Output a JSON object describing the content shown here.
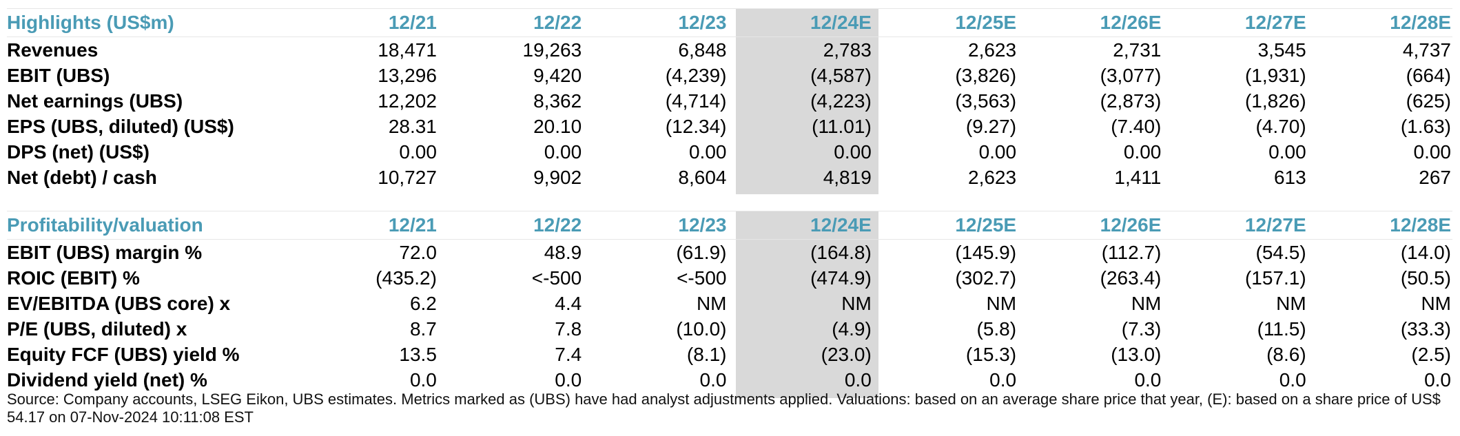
{
  "highlights": {
    "title": "Highlights (US$m)",
    "columns": [
      "12/21",
      "12/22",
      "12/23",
      "12/24E",
      "12/25E",
      "12/26E",
      "12/27E",
      "12/28E"
    ],
    "rows": [
      {
        "label": "Revenues",
        "values": [
          "18,471",
          "19,263",
          "6,848",
          "2,783",
          "2,623",
          "2,731",
          "3,545",
          "4,737"
        ]
      },
      {
        "label": "EBIT (UBS)",
        "values": [
          "13,296",
          "9,420",
          "(4,239)",
          "(4,587)",
          "(3,826)",
          "(3,077)",
          "(1,931)",
          "(664)"
        ]
      },
      {
        "label": "Net earnings (UBS)",
        "values": [
          "12,202",
          "8,362",
          "(4,714)",
          "(4,223)",
          "(3,563)",
          "(2,873)",
          "(1,826)",
          "(625)"
        ]
      },
      {
        "label": "EPS (UBS, diluted) (US$)",
        "values": [
          "28.31",
          "20.10",
          "(12.34)",
          "(11.01)",
          "(9.27)",
          "(7.40)",
          "(4.70)",
          "(1.63)"
        ]
      },
      {
        "label": "DPS (net) (US$)",
        "values": [
          "0.00",
          "0.00",
          "0.00",
          "0.00",
          "0.00",
          "0.00",
          "0.00",
          "0.00"
        ]
      },
      {
        "label": "Net (debt) / cash",
        "values": [
          "10,727",
          "9,902",
          "8,604",
          "4,819",
          "2,623",
          "1,411",
          "613",
          "267"
        ]
      }
    ]
  },
  "profitability": {
    "title": "Profitability/valuation",
    "columns": [
      "12/21",
      "12/22",
      "12/23",
      "12/24E",
      "12/25E",
      "12/26E",
      "12/27E",
      "12/28E"
    ],
    "rows": [
      {
        "label": "EBIT (UBS) margin %",
        "values": [
          "72.0",
          "48.9",
          "(61.9)",
          "(164.8)",
          "(145.9)",
          "(112.7)",
          "(54.5)",
          "(14.0)"
        ]
      },
      {
        "label": "ROIC (EBIT) %",
        "values": [
          "(435.2)",
          "<-500",
          "<-500",
          "(474.9)",
          "(302.7)",
          "(263.4)",
          "(157.1)",
          "(50.5)"
        ]
      },
      {
        "label": "EV/EBITDA (UBS core) x",
        "values": [
          "6.2",
          "4.4",
          "NM",
          "NM",
          "NM",
          "NM",
          "NM",
          "NM"
        ]
      },
      {
        "label": "P/E (UBS, diluted) x",
        "values": [
          "8.7",
          "7.8",
          "(10.0)",
          "(4.9)",
          "(5.8)",
          "(7.3)",
          "(11.5)",
          "(33.3)"
        ]
      },
      {
        "label": "Equity FCF (UBS) yield %",
        "values": [
          "13.5",
          "7.4",
          "(8.1)",
          "(23.0)",
          "(15.3)",
          "(13.0)",
          "(8.6)",
          "(2.5)"
        ]
      },
      {
        "label": "Dividend yield (net) %",
        "values": [
          "0.0",
          "0.0",
          "0.0",
          "0.0",
          "0.0",
          "0.0",
          "0.0",
          "0.0"
        ]
      }
    ]
  },
  "footer": {
    "source_note": "Source: Company accounts, LSEG Eikon, UBS estimates. Metrics marked as (UBS) have had analyst adjustments applied. Valuations: based on an average share price that year, (E): based on a share price of US$ 54.17 on 07-Nov-2024 10:11:08 EST"
  },
  "colors": {
    "header_text": "#4a9bb5",
    "highlight_column": "#d9d9d9",
    "body_text": "#000000"
  }
}
